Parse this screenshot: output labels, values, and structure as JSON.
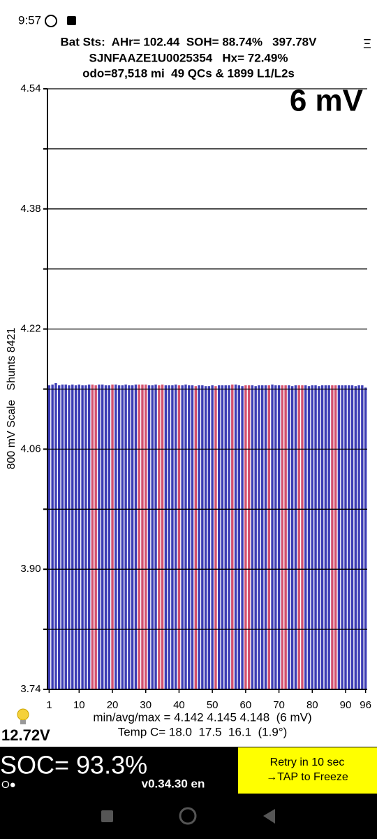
{
  "status_bar": {
    "time": "9:57"
  },
  "header": {
    "line1": "Bat Sts:  AHr= 102.44  SOH= 88.74%   397.78V",
    "line2": "SJNFAAZE1U0025354   Hx= 72.49%",
    "line3": "odo=87,518 mi  49 QCs & 1899 L1/L2s",
    "menu": "Ξ"
  },
  "chart_data": {
    "type": "bar",
    "annotation": "6 mV",
    "y_label": "800 mV Scale   Shunts 8421",
    "x": [
      1,
      2,
      3,
      4,
      5,
      6,
      7,
      8,
      9,
      10,
      11,
      12,
      13,
      14,
      15,
      16,
      17,
      18,
      19,
      20,
      21,
      22,
      23,
      24,
      25,
      26,
      27,
      28,
      29,
      30,
      31,
      32,
      33,
      34,
      35,
      36,
      37,
      38,
      39,
      40,
      41,
      42,
      43,
      44,
      45,
      46,
      47,
      48,
      49,
      50,
      51,
      52,
      53,
      54,
      55,
      56,
      57,
      58,
      59,
      60,
      61,
      62,
      63,
      64,
      65,
      66,
      67,
      68,
      69,
      70,
      71,
      72,
      73,
      74,
      75,
      76,
      77,
      78,
      79,
      80,
      81,
      82,
      83,
      84,
      85,
      86,
      87,
      88,
      89,
      90,
      91,
      92,
      93,
      94,
      95,
      96
    ],
    "values": [
      4.145,
      4.146,
      4.148,
      4.145,
      4.146,
      4.146,
      4.145,
      4.146,
      4.145,
      4.146,
      4.145,
      4.145,
      4.146,
      4.146,
      4.145,
      4.146,
      4.146,
      4.145,
      4.145,
      4.146,
      4.146,
      4.145,
      4.145,
      4.146,
      4.145,
      4.145,
      4.146,
      4.146,
      4.146,
      4.146,
      4.145,
      4.145,
      4.146,
      4.145,
      4.146,
      4.145,
      4.145,
      4.145,
      4.146,
      4.145,
      4.145,
      4.146,
      4.145,
      4.145,
      4.144,
      4.145,
      4.145,
      4.144,
      4.144,
      4.145,
      4.144,
      4.145,
      4.145,
      4.145,
      4.145,
      4.146,
      4.146,
      4.145,
      4.144,
      4.145,
      4.145,
      4.145,
      4.144,
      4.145,
      4.145,
      4.145,
      4.145,
      4.146,
      4.145,
      4.145,
      4.145,
      4.145,
      4.145,
      4.144,
      4.145,
      4.145,
      4.145,
      4.145,
      4.144,
      4.145,
      4.145,
      4.144,
      4.145,
      4.145,
      4.145,
      4.145,
      4.145,
      4.145,
      4.145,
      4.145,
      4.145,
      4.145,
      4.144,
      4.145,
      4.145,
      4.142
    ],
    "colors": [
      "#3c3cb4",
      "#3c3cb4",
      "#3c3cb4",
      "#3c3cb4",
      "#3c3cb4",
      "#3c3cb4",
      "#3c3cb4",
      "#3c3cb4",
      "#3c3cb4",
      "#3c3cb4",
      "#3c3cb4",
      "#3c3cb4",
      "#3c3cb4",
      "#d2506e",
      "#d2506e",
      "#3c3cb4",
      "#3c3cb4",
      "#3c3cb4",
      "#3c3cb4",
      "#d2506e",
      "#3c3cb4",
      "#3c3cb4",
      "#3c3cb4",
      "#3c3cb4",
      "#3c3cb4",
      "#3c3cb4",
      "#3c3cb4",
      "#d2506e",
      "#d2506e",
      "#d2506e",
      "#3c3cb4",
      "#3c3cb4",
      "#3c3cb4",
      "#d2506e",
      "#d2506e",
      "#3c3cb4",
      "#3c3cb4",
      "#3c3cb4",
      "#3c3cb4",
      "#d2506e",
      "#3c3cb4",
      "#3c3cb4",
      "#3c3cb4",
      "#3c3cb4",
      "#d2506e",
      "#3c3cb4",
      "#3c3cb4",
      "#3c3cb4",
      "#3c3cb4",
      "#3c3cb4",
      "#d2506e",
      "#3c3cb4",
      "#3c3cb4",
      "#3c3cb4",
      "#3c3cb4",
      "#d2506e",
      "#3c3cb4",
      "#3c3cb4",
      "#3c3cb4",
      "#d2506e",
      "#d2506e",
      "#3c3cb4",
      "#3c3cb4",
      "#3c3cb4",
      "#3c3cb4",
      "#3c3cb4",
      "#d2506e",
      "#3c3cb4",
      "#3c3cb4",
      "#3c3cb4",
      "#d2506e",
      "#d2506e",
      "#3c3cb4",
      "#3c3cb4",
      "#3c3cb4",
      "#d2506e",
      "#d2506e",
      "#3c3cb4",
      "#3c3cb4",
      "#3c3cb4",
      "#3c3cb4",
      "#3c3cb4",
      "#3c3cb4",
      "#3c3cb4",
      "#3c3cb4",
      "#d2506e",
      "#d2506e",
      "#3c3cb4",
      "#3c3cb4",
      "#3c3cb4",
      "#3c3cb4",
      "#3c3cb4",
      "#3c3cb4",
      "#3c3cb4",
      "#3c3cb4",
      "#3c3cb4"
    ],
    "xlim": [
      0.5,
      96.5
    ],
    "xticks": [
      1,
      10,
      20,
      30,
      40,
      50,
      60,
      70,
      80,
      90,
      96
    ],
    "ylim": [
      3.74,
      4.54
    ],
    "yticks": [
      3.74,
      {
        "value": 3.9,
        "label": "3.90"
      },
      4.06,
      4.22,
      4.38,
      4.54
    ],
    "minor_yticks": [
      3.82,
      3.98,
      4.14,
      4.3,
      4.46
    ],
    "grid": true
  },
  "stats": {
    "minmax": "min/avg/max = 4.142 4.145 4.148  (6 mV)",
    "temp": "Temp C= 18.0  17.5  16.1  (1.9°)",
    "aux_voltage": "12.72V"
  },
  "footer": {
    "soc": "SOC= 93.3%",
    "indicator": "O●",
    "version": "v0.34.30 en",
    "button": [
      "Retry in 10 sec",
      "→TAP to Freeze"
    ]
  }
}
